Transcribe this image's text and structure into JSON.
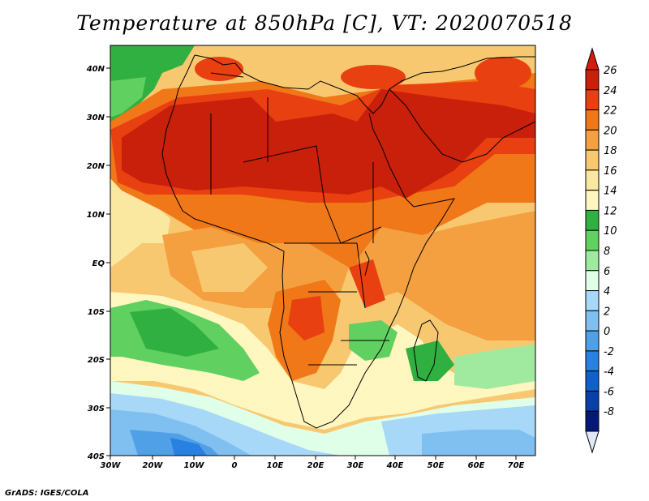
{
  "title": "Temperature at 850hPa [C], VT: 2020070518",
  "footer": "GrADS: IGES/COLA",
  "axes": {
    "lon_ticks": [
      "30W",
      "20W",
      "10W",
      "0",
      "10E",
      "20E",
      "30E",
      "40E",
      "50E",
      "60E",
      "70E"
    ],
    "lat_ticks": [
      "40N",
      "30N",
      "20N",
      "10N",
      "EQ",
      "10S",
      "20S",
      "30S",
      "40S"
    ]
  },
  "colorbar": {
    "labels": [
      "26",
      "24",
      "22",
      "20",
      "18",
      "16",
      "14",
      "12",
      "10",
      "8",
      "6",
      "4",
      "2",
      "0",
      "-2",
      "-4",
      "-6",
      "-8"
    ],
    "colors": [
      "#c8200a",
      "#e84010",
      "#f07818",
      "#f4a040",
      "#f8c870",
      "#fae8a0",
      "#fff6c0",
      "#30b040",
      "#60d060",
      "#a0eaa0",
      "#e0ffe8",
      "#a8d8f8",
      "#80c0f0",
      "#50a0e8",
      "#2880e0",
      "#1060c8",
      "#0840a8",
      "#041878"
    ],
    "top_color": "#d0200c",
    "bottom_color": "#e0e8f8"
  }
}
